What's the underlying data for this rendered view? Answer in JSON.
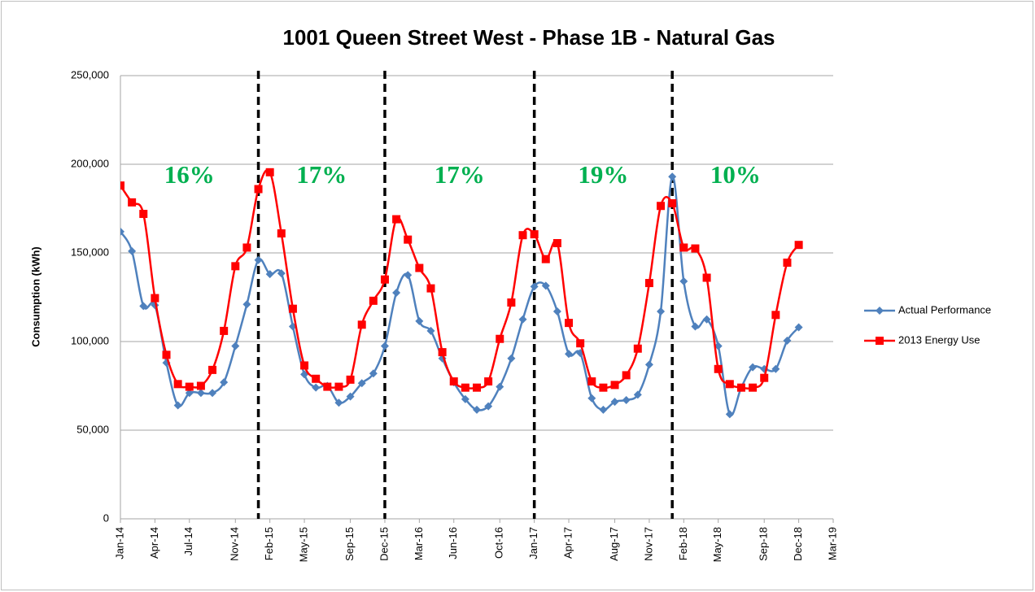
{
  "chart_data": {
    "type": "line",
    "title": "1001 Queen Street West - Phase 1B - Natural Gas",
    "y_label": "Consumption (kWh)",
    "x": [
      "2014-01",
      "2014-02",
      "2014-03",
      "2014-04",
      "2014-05",
      "2014-06",
      "2014-07",
      "2014-08",
      "2014-09",
      "2014-10",
      "2014-11",
      "2014-12",
      "2015-01",
      "2015-02",
      "2015-03",
      "2015-04",
      "2015-05",
      "2015-06",
      "2015-07",
      "2015-08",
      "2015-09",
      "2015-10",
      "2015-11",
      "2015-12",
      "2016-01",
      "2016-02",
      "2016-03",
      "2016-04",
      "2016-05",
      "2016-06",
      "2016-07",
      "2016-08",
      "2016-09",
      "2016-10",
      "2016-11",
      "2016-12",
      "2017-01",
      "2017-02",
      "2017-03",
      "2017-04",
      "2017-05",
      "2017-06",
      "2017-07",
      "2017-08",
      "2017-09",
      "2017-10",
      "2017-11",
      "2017-12",
      "2018-01",
      "2018-02",
      "2018-03",
      "2018-04",
      "2018-05",
      "2018-06",
      "2018-07",
      "2018-08",
      "2018-09",
      "2018-10",
      "2018-11",
      "2018-12"
    ],
    "series": [
      {
        "name": "Actual Performance",
        "color": "#4f81bd",
        "marker": "diamond",
        "values": [
          162000,
          151000,
          120000,
          120500,
          88000,
          64000,
          71000,
          71000,
          71000,
          77000,
          97500,
          121000,
          146000,
          138000,
          138500,
          108500,
          81500,
          74000,
          75000,
          65500,
          69000,
          76500,
          82000,
          97500,
          127500,
          137500,
          111500,
          106000,
          90500,
          77000,
          67500,
          61500,
          63500,
          74500,
          90500,
          112500,
          131000,
          131500,
          117000,
          93000,
          93500,
          68000,
          61500,
          66000,
          67000,
          70000,
          87000,
          117000,
          193000,
          134000,
          108500,
          112500,
          97500,
          59000,
          74000,
          85500,
          84500,
          84500,
          100500,
          108000
        ]
      },
      {
        "name": "2013 Energy Use",
        "color": "#ff0000",
        "marker": "square",
        "values": [
          188000,
          178500,
          172000,
          124500,
          92500,
          76000,
          74500,
          75000,
          84000,
          106000,
          142500,
          153000,
          186000,
          195500,
          161000,
          118500,
          86500,
          79000,
          74500,
          74500,
          78500,
          109500,
          123000,
          135000,
          169000,
          157500,
          141500,
          130000,
          94000,
          77500,
          74000,
          74000,
          77500,
          101500,
          122000,
          160000,
          160500,
          146500,
          155500,
          110500,
          99000,
          77500,
          74000,
          75500,
          81000,
          96000,
          133000,
          176500,
          178000,
          153000,
          152500,
          136000,
          84500,
          76000,
          74000,
          74000,
          79500,
          115000,
          144500,
          154500
        ]
      }
    ],
    "xlim": [
      "2014-01",
      "2019-03"
    ],
    "xticks": [
      {
        "value": "2014-01",
        "label": "Jan-14"
      },
      {
        "value": "2014-04",
        "label": "Apr-14"
      },
      {
        "value": "2014-07",
        "label": "Jul-14"
      },
      {
        "value": "2014-11",
        "label": "Nov-14"
      },
      {
        "value": "2015-02",
        "label": "Feb-15"
      },
      {
        "value": "2015-05",
        "label": "May-15"
      },
      {
        "value": "2015-09",
        "label": "Sep-15"
      },
      {
        "value": "2015-12",
        "label": "Dec-15"
      },
      {
        "value": "2016-03",
        "label": "Mar-16"
      },
      {
        "value": "2016-06",
        "label": "Jun-16"
      },
      {
        "value": "2016-10",
        "label": "Oct-16"
      },
      {
        "value": "2017-01",
        "label": "Jan-17"
      },
      {
        "value": "2017-04",
        "label": "Apr-17"
      },
      {
        "value": "2017-08",
        "label": "Aug-17"
      },
      {
        "value": "2017-11",
        "label": "Nov-17"
      },
      {
        "value": "2018-02",
        "label": "Feb-18"
      },
      {
        "value": "2018-05",
        "label": "May-18"
      },
      {
        "value": "2018-09",
        "label": "Sep-18"
      },
      {
        "value": "2018-12",
        "label": "Dec-18"
      },
      {
        "value": "2019-03",
        "label": "Mar-19"
      }
    ],
    "ylim": [
      0,
      250000
    ],
    "yticks": [
      0,
      {
        "value": 50000,
        "label": "50,000"
      },
      {
        "value": 100000,
        "label": "100,000"
      },
      {
        "value": 150000,
        "label": "150,000"
      },
      {
        "value": 200000,
        "label": "200,000"
      },
      {
        "value": 250000,
        "label": "250,000"
      }
    ],
    "grid": true,
    "legend": "right",
    "vertical_lines": [
      "2015-01",
      "2015-12",
      "2017-01",
      "2018-01"
    ],
    "annotations": [
      "16%",
      "17%",
      "17%",
      "19%",
      "10%"
    ]
  }
}
